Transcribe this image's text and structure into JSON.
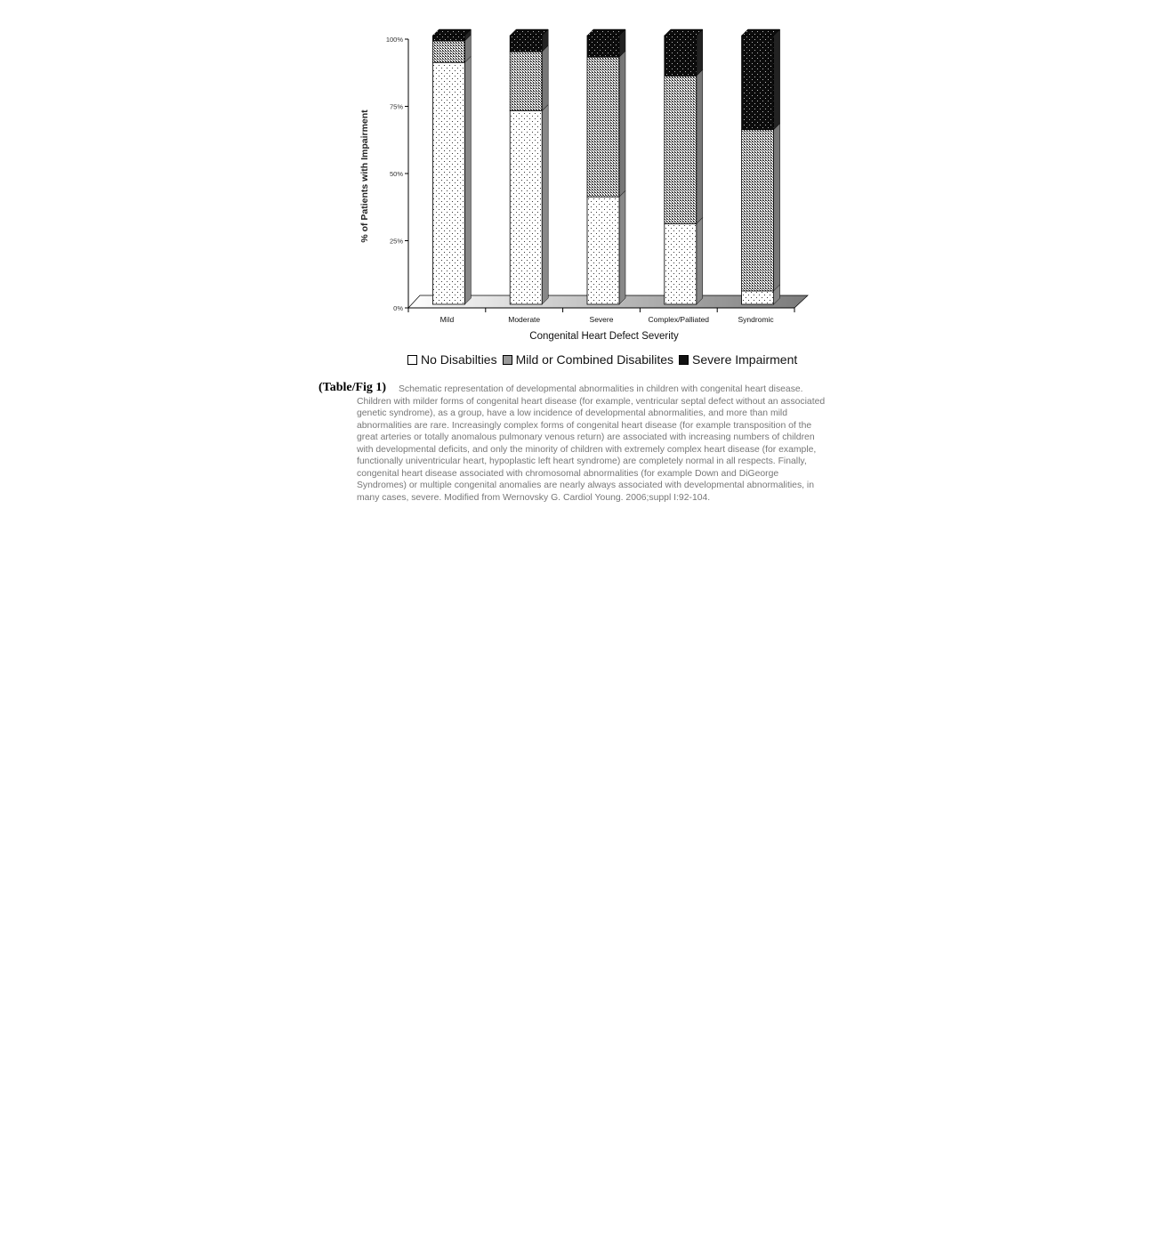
{
  "chart_data": {
    "type": "bar",
    "stacked": true,
    "three_d": true,
    "categories": [
      "Mild",
      "Moderate",
      "Severe",
      "Complex/Palliated",
      "Syndromic"
    ],
    "series": [
      {
        "name": "No Disabilties",
        "values": [
          90,
          72,
          40,
          30,
          5
        ],
        "pattern": "sparse-dots",
        "color": "#ffffff"
      },
      {
        "name": "Mild or Combined Disabilites",
        "values": [
          8,
          22,
          52,
          55,
          60
        ],
        "pattern": "crosshatch",
        "color": "#9a9a9a"
      },
      {
        "name": "Severe Impairment",
        "values": [
          2,
          6,
          8,
          15,
          35
        ],
        "pattern": "dark-dots",
        "color": "#111111"
      }
    ],
    "xlabel": "Congenital Heart Defect Severity",
    "ylabel": "% of Patients with Impairment",
    "yticks": [
      "0%",
      "25%",
      "50%",
      "75%",
      "100%"
    ],
    "ylim": [
      0,
      100
    ],
    "grid": false,
    "legend_position": "bottom"
  },
  "caption": {
    "label": "(Table/Fig 1)",
    "text": "Schematic representation of developmental abnormalities in children with congenital heart disease.  Children with milder forms of congenital heart disease (for example, ventricular septal defect without an   associated genetic syndrome), as a group, have a low incidence of developmental abnormalities, and more than mild abnormalities are rare.  Increasingly complex forms of congenital heart disease (for example transposition of the great arteries or totally anomalous pulmonary venous return) are associated with increasing numbers of children with developmental deficits, and only the minority of children with extremely complex heart disease (for example, functionally univentricular heart, hypoplastic left heart syndrome) are completely normal in all respects.  Finally, congenital heart disease associated with chromosomal abnormalities (for example Down and DiGeorge Syndromes) or multiple congenital anomalies are nearly  always associated with developmental abnormalities, in many cases, severe. Modified from Wernovsky G. Cardiol Young. 2006;suppl I:92-104."
  }
}
